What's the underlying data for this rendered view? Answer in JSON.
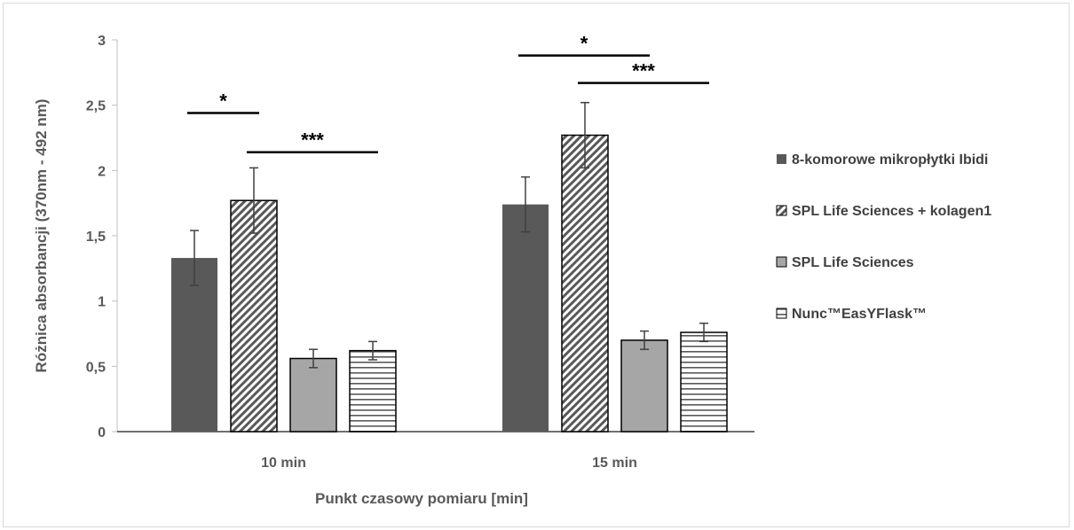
{
  "chart_data": {
    "type": "bar",
    "categories": [
      "10 min",
      "15 min"
    ],
    "series": [
      {
        "name": "8-komorowe mikropłytki Ibidi",
        "values": [
          1.33,
          1.74
        ],
        "errors": [
          0.21,
          0.21
        ],
        "color": "#595959",
        "pattern": "solid-dark"
      },
      {
        "name": "SPL Life Sciences + kolagen1",
        "values": [
          1.77,
          2.27
        ],
        "errors": [
          0.25,
          0.25
        ],
        "color": "#595959",
        "pattern": "diagonal-hatch"
      },
      {
        "name": "SPL Life Sciences",
        "values": [
          0.56,
          0.7
        ],
        "errors": [
          0.07,
          0.07
        ],
        "color": "#a6a6a6",
        "pattern": "solid-light"
      },
      {
        "name": "Nunc™EasYFlask™",
        "values": [
          0.62,
          0.76
        ],
        "errors": [
          0.07,
          0.07
        ],
        "color": "#595959",
        "pattern": "horizontal-lines"
      }
    ],
    "xlabel": "Punkt czasowy pomiaru [min]",
    "ylabel": "Różnica absorbancji (370nm - 492 nm)",
    "ylim": [
      0,
      3
    ],
    "yticks": [
      "0",
      "0,5",
      "1",
      "1,5",
      "2",
      "2,5",
      "3"
    ],
    "grid": false,
    "legend_position": "right",
    "significance": [
      {
        "category": "10 min",
        "label": "*",
        "from_series": 0,
        "to_series": 1,
        "y": 2.44
      },
      {
        "category": "10 min",
        "label": "***",
        "from_series": 1,
        "to_series": 3,
        "y": 2.14
      },
      {
        "category": "15 min",
        "label": "*",
        "from_series": 0,
        "to_series": 2,
        "y": 2.88
      },
      {
        "category": "15 min",
        "label": "***",
        "from_series": 1,
        "to_series": 3,
        "y": 2.67
      }
    ]
  }
}
